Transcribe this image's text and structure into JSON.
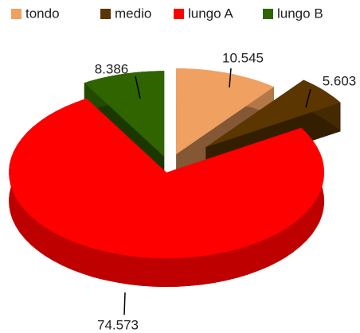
{
  "chart_data": {
    "type": "pie",
    "three_d": true,
    "exploded": true,
    "categories": [
      "tondo",
      "medio",
      "lungo A",
      "lungo B"
    ],
    "values": [
      10.545,
      5.603,
      74.573,
      8.386
    ],
    "colors": [
      "#f0a060",
      "#5c3600",
      "#ff0000",
      "#2f6400"
    ],
    "legend": "top"
  }
}
